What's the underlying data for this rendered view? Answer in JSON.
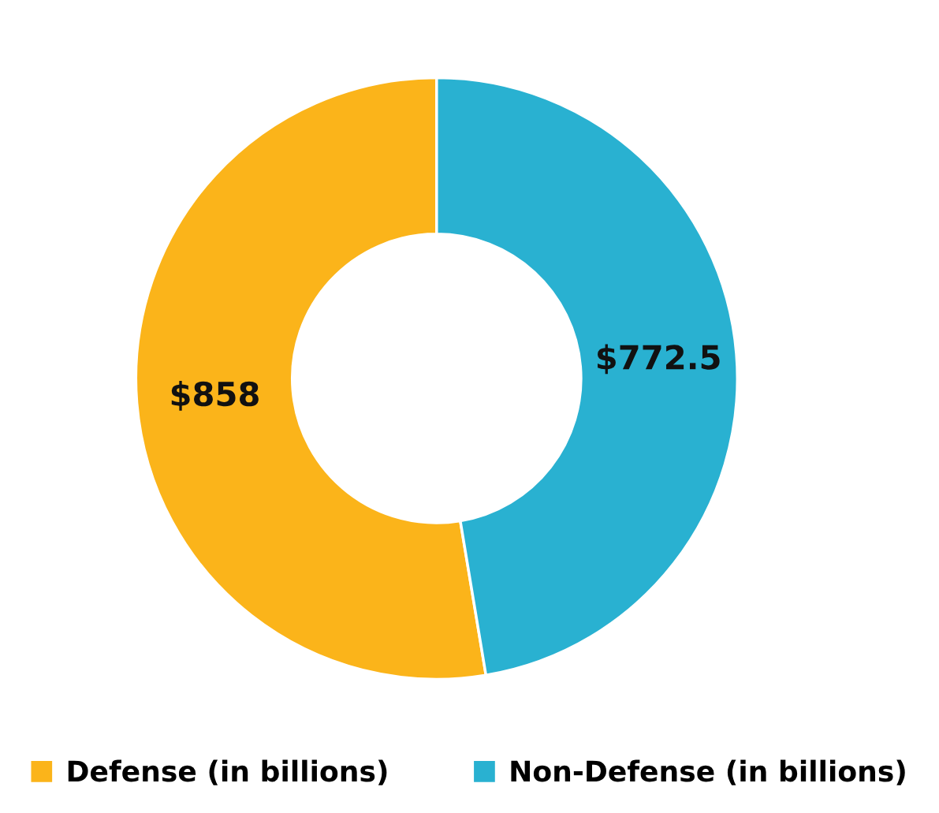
{
  "chart_data": {
    "type": "donut",
    "categories": [
      "Defense (in billions)",
      "Non-Defense (in billions)"
    ],
    "values": [
      858,
      772.5
    ],
    "colors": [
      "#fbb41a",
      "#29b1d1"
    ],
    "value_labels": [
      "$858",
      "$772.5"
    ],
    "legend": "bottom"
  }
}
